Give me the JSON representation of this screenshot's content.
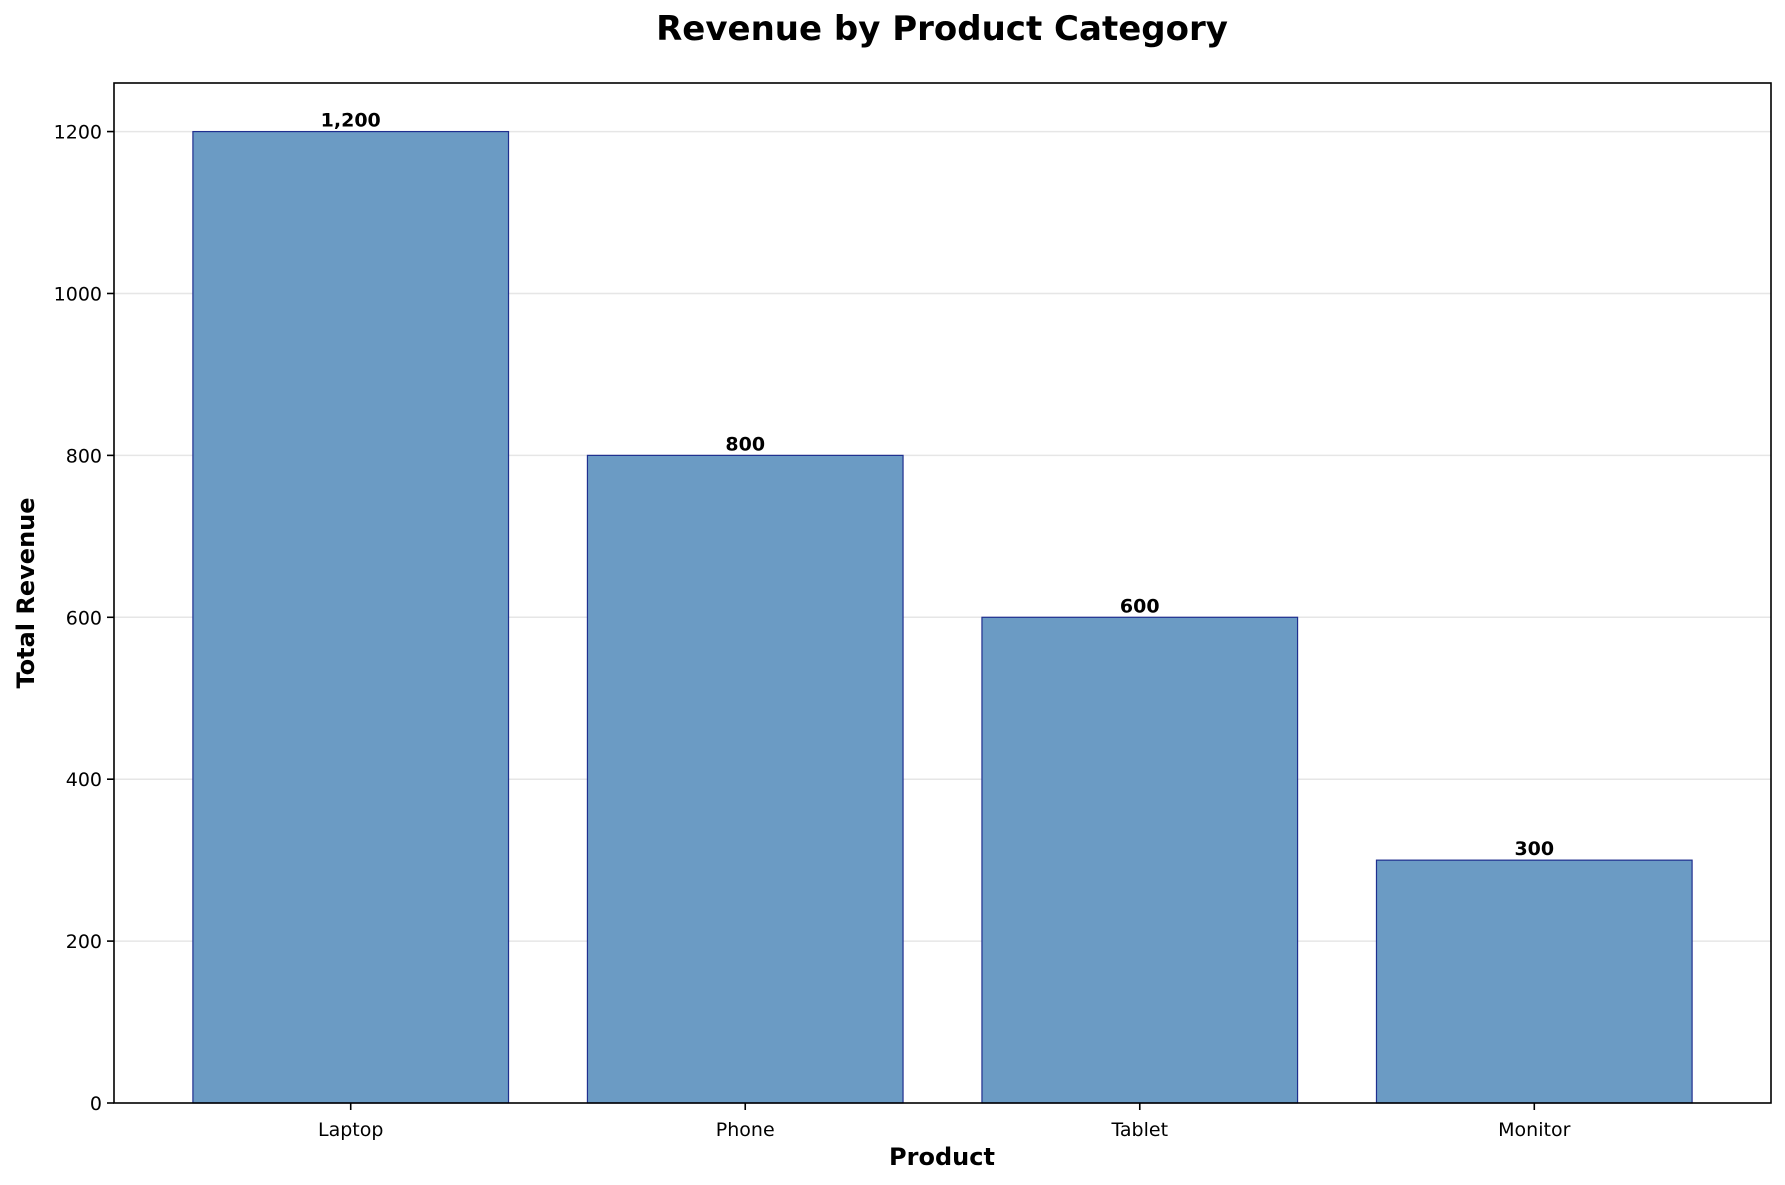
{
  "chart_data": {
    "type": "bar",
    "title": "Revenue by Product Category",
    "xlabel": "Product",
    "ylabel": "Total Revenue",
    "categories": [
      "Laptop",
      "Phone",
      "Tablet",
      "Monitor"
    ],
    "values": [
      1200,
      800,
      600,
      300
    ],
    "data_labels": [
      "1,200",
      "800",
      "600",
      "300"
    ],
    "ylim": [
      0,
      1260
    ],
    "yticks": [
      0,
      200,
      400,
      600,
      800,
      1000,
      1200
    ],
    "grid": "y",
    "legend": "none",
    "colors": {
      "bar_fill": "#6b9bc4",
      "bar_edge": "#1f2f8f"
    }
  }
}
